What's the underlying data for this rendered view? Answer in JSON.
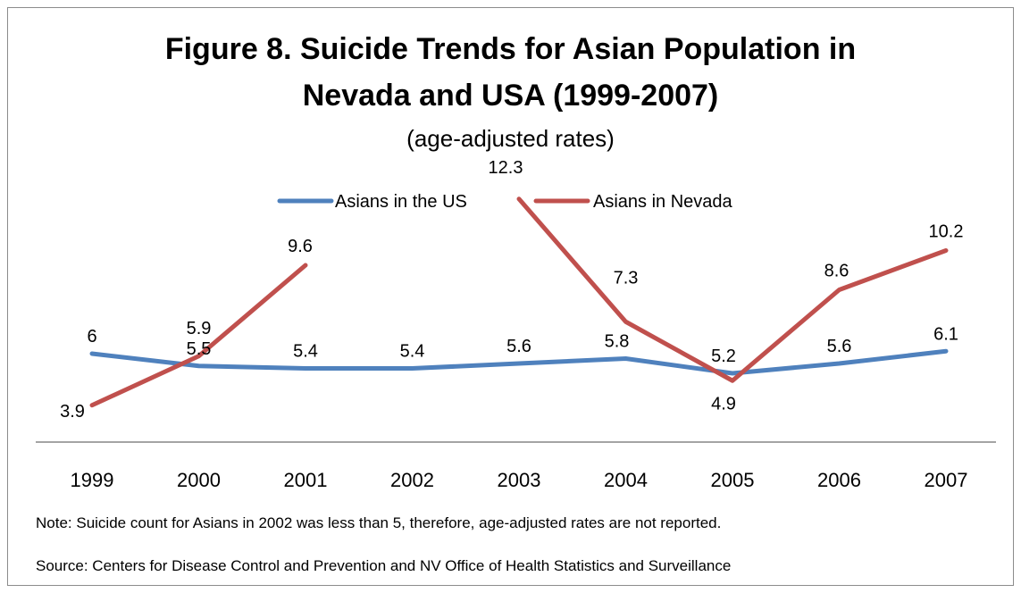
{
  "chart_data": {
    "type": "line",
    "title_line1": "Figure 8. Suicide Trends for Asian Population in",
    "title_line2": "Nevada and USA (1999-2007)",
    "subtitle": "(age-adjusted rates)",
    "categories": [
      "1999",
      "2000",
      "2001",
      "2002",
      "2003",
      "2004",
      "2005",
      "2006",
      "2007"
    ],
    "series": [
      {
        "name": "Asians in the US",
        "color": "#4f81bd",
        "values": [
          6,
          5.5,
          5.4,
          5.4,
          5.6,
          5.8,
          5.2,
          5.6,
          6.1
        ]
      },
      {
        "name": "Asians in Nevada",
        "color": "#c0504d",
        "values": [
          3.9,
          5.9,
          9.6,
          null,
          12.3,
          7.3,
          4.9,
          8.6,
          10.2
        ]
      }
    ],
    "legend_position": "top",
    "grid": false
  },
  "note": "Note: Suicide count for Asians in 2002 was less than 5, therefore, age-adjusted rates are not reported.",
  "source": "Source: Centers for Disease Control and Prevention and NV Office of Health Statistics and Surveillance"
}
